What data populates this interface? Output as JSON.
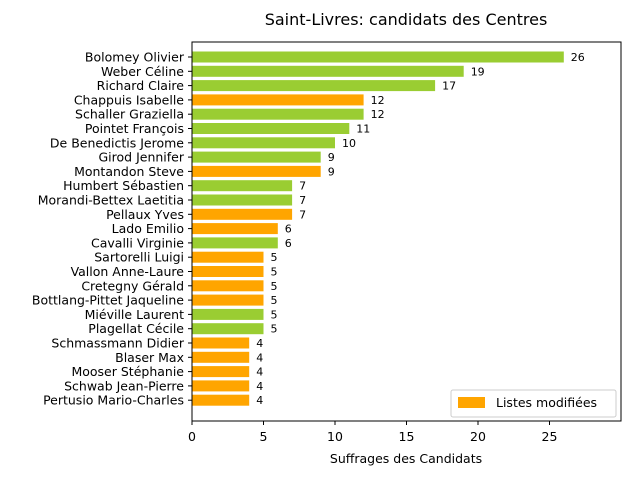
{
  "chart_data": {
    "type": "bar",
    "orientation": "horizontal",
    "title": "Saint-Livres: candidats des Centres",
    "xlabel": "Suffrages des Candidats",
    "ylabel": "",
    "xlim": [
      0,
      30
    ],
    "xticks": [
      0,
      5,
      10,
      15,
      20,
      25
    ],
    "grid": false,
    "legend": {
      "placement": "bottom-right",
      "entries": [
        {
          "label": "Listes modifiées",
          "color": "#ffa500"
        }
      ]
    },
    "colors": {
      "default": "#9acd32",
      "modified": "#ffa500"
    },
    "categories": [
      "Bolomey Olivier",
      "Weber Céline",
      "Richard Claire",
      "Chappuis Isabelle",
      "Schaller Graziella",
      "Pointet François",
      "De Benedictis Jerome",
      "Girod Jennifer",
      "Montandon Steve",
      "Humbert Sébastien",
      "Morandi-Bettex Laetitia",
      "Pellaux Yves",
      "Lado Emilio",
      "Cavalli Virginie",
      "Sartorelli Luigi",
      "Vallon Anne-Laure",
      "Cretegny Gérald",
      "Bottlang-Pittet Jaqueline",
      "Miéville Laurent",
      "Plagellat Cécile",
      "Schmassmann Didier",
      "Blaser Max",
      "Mooser Stéphanie",
      "Schwab Jean-Pierre",
      "Pertusio Mario-Charles"
    ],
    "values": [
      26,
      19,
      17,
      12,
      12,
      11,
      10,
      9,
      9,
      7,
      7,
      7,
      6,
      6,
      5,
      5,
      5,
      5,
      5,
      5,
      4,
      4,
      4,
      4,
      4
    ],
    "modified": [
      false,
      false,
      false,
      true,
      false,
      false,
      false,
      false,
      true,
      false,
      false,
      true,
      true,
      false,
      true,
      true,
      true,
      true,
      false,
      false,
      true,
      true,
      true,
      true,
      true
    ]
  }
}
